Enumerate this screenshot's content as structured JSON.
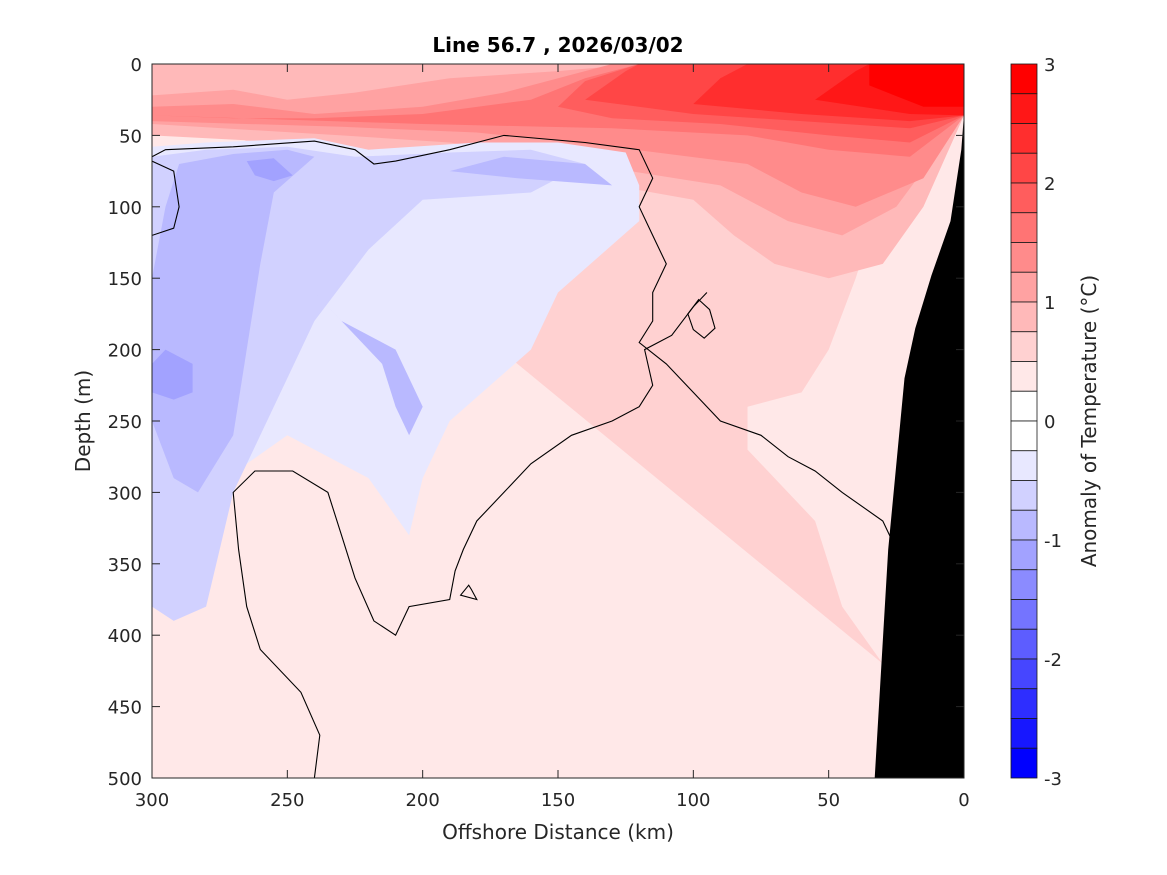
{
  "chart_data": {
    "type": "contour",
    "title": "Line 56.7 , 2026/03/02",
    "xlabel": "Offshore Distance (km)",
    "ylabel": "Depth (m)",
    "xlim": [
      300,
      0
    ],
    "ylim": [
      0,
      500
    ],
    "x_reversed": true,
    "y_reversed": true,
    "xticks": [
      300,
      250,
      200,
      150,
      100,
      50,
      0
    ],
    "yticks": [
      0,
      50,
      100,
      150,
      200,
      250,
      300,
      350,
      400,
      450,
      500
    ],
    "colorbar": {
      "label": "Anomaly of Temperature (°C)",
      "range": [
        -3,
        3
      ],
      "step": 0.25,
      "ticks": [
        3,
        2,
        1,
        0,
        -1,
        -2,
        -3
      ],
      "neg_color": "#0000ff",
      "zero_color": "#ffffff",
      "pos_color": "#ff0000"
    },
    "seafloor_color": "#000000",
    "contour_line_level": 0,
    "regions": [
      {
        "level": 0.25,
        "pts": [
          [
            300,
            0
          ],
          [
            0,
            0
          ],
          [
            0,
            500
          ],
          [
            300,
            500
          ]
        ]
      },
      {
        "level": 0.5,
        "pts": [
          [
            300,
            0
          ],
          [
            0,
            0
          ],
          [
            0,
            36
          ],
          [
            30,
            90
          ],
          [
            40,
            150
          ],
          [
            50,
            200
          ],
          [
            60,
            230
          ],
          [
            80,
            240
          ],
          [
            80,
            270
          ],
          [
            55,
            320
          ],
          [
            45,
            380
          ],
          [
            30,
            420
          ],
          [
            30,
            420
          ]
        ]
      },
      {
        "level": 0.75,
        "pts": [
          [
            300,
            0
          ],
          [
            0,
            0
          ],
          [
            0,
            36
          ],
          [
            15,
            100
          ],
          [
            30,
            140
          ],
          [
            50,
            150
          ],
          [
            70,
            140
          ],
          [
            85,
            120
          ],
          [
            100,
            95
          ],
          [
            130,
            85
          ],
          [
            200,
            70
          ],
          [
            250,
            55
          ],
          [
            300,
            50
          ]
        ]
      },
      {
        "level": 1.0,
        "pts": [
          [
            300,
            22
          ],
          [
            270,
            18
          ],
          [
            250,
            25
          ],
          [
            225,
            20
          ],
          [
            190,
            10
          ],
          [
            150,
            5
          ],
          [
            120,
            0
          ],
          [
            0,
            0
          ],
          [
            0,
            36
          ],
          [
            25,
            100
          ],
          [
            45,
            120
          ],
          [
            65,
            110
          ],
          [
            90,
            85
          ],
          [
            140,
            70
          ],
          [
            190,
            55
          ],
          [
            230,
            50
          ],
          [
            300,
            42
          ]
        ]
      },
      {
        "level": 1.25,
        "pts": [
          [
            300,
            30
          ],
          [
            270,
            28
          ],
          [
            240,
            35
          ],
          [
            200,
            30
          ],
          [
            170,
            20
          ],
          [
            140,
            5
          ],
          [
            130,
            0
          ],
          [
            0,
            0
          ],
          [
            0,
            36
          ],
          [
            15,
            80
          ],
          [
            40,
            100
          ],
          [
            60,
            90
          ],
          [
            80,
            70
          ],
          [
            130,
            58
          ],
          [
            180,
            48
          ],
          [
            230,
            44
          ],
          [
            300,
            40
          ]
        ]
      },
      {
        "level": 1.5,
        "pts": [
          [
            300,
            36
          ],
          [
            270,
            38
          ],
          [
            240,
            38
          ],
          [
            200,
            35
          ],
          [
            160,
            25
          ],
          [
            140,
            10
          ],
          [
            120,
            0
          ],
          [
            0,
            0
          ],
          [
            0,
            36
          ],
          [
            20,
            65
          ],
          [
            50,
            60
          ],
          [
            80,
            50
          ],
          [
            130,
            45
          ],
          [
            200,
            42
          ]
        ]
      },
      {
        "level": 1.75,
        "pts": [
          [
            150,
            30
          ],
          [
            140,
            12
          ],
          [
            120,
            0
          ],
          [
            0,
            0
          ],
          [
            0,
            36
          ],
          [
            20,
            55
          ],
          [
            50,
            50
          ],
          [
            90,
            42
          ],
          [
            130,
            38
          ]
        ]
      },
      {
        "level": 2.0,
        "pts": [
          [
            140,
            25
          ],
          [
            125,
            5
          ],
          [
            120,
            0
          ],
          [
            0,
            0
          ],
          [
            0,
            36
          ],
          [
            20,
            45
          ],
          [
            60,
            40
          ],
          [
            100,
            35
          ]
        ]
      },
      {
        "level": 2.25,
        "pts": [
          [
            100,
            28
          ],
          [
            90,
            10
          ],
          [
            80,
            0
          ],
          [
            0,
            0
          ],
          [
            0,
            36
          ],
          [
            20,
            40
          ],
          [
            60,
            35
          ]
        ]
      },
      {
        "level": 2.5,
        "pts": [
          [
            55,
            25
          ],
          [
            40,
            5
          ],
          [
            35,
            0
          ],
          [
            0,
            0
          ],
          [
            0,
            36
          ],
          [
            20,
            35
          ]
        ]
      },
      {
        "level": 2.75,
        "pts": [
          [
            35,
            15
          ],
          [
            35,
            0
          ],
          [
            0,
            0
          ],
          [
            0,
            30
          ],
          [
            15,
            30
          ]
        ]
      },
      {
        "level": -0.25,
        "pts": [
          [
            300,
            58
          ],
          [
            280,
            55
          ],
          [
            240,
            52
          ],
          [
            220,
            60
          ],
          [
            180,
            55
          ],
          [
            150,
            55
          ],
          [
            125,
            62
          ],
          [
            120,
            85
          ],
          [
            120,
            110
          ],
          [
            150,
            160
          ],
          [
            160,
            200
          ],
          [
            190,
            250
          ],
          [
            200,
            290
          ],
          [
            205,
            330
          ],
          [
            220,
            290
          ],
          [
            250,
            260
          ],
          [
            280,
            300
          ],
          [
            290,
            330
          ],
          [
            300,
            360
          ]
        ]
      },
      {
        "level": -0.5,
        "pts": [
          [
            300,
            65
          ],
          [
            280,
            60
          ],
          [
            250,
            58
          ],
          [
            225,
            65
          ],
          [
            190,
            62
          ],
          [
            160,
            60
          ],
          [
            140,
            70
          ],
          [
            160,
            90
          ],
          [
            200,
            95
          ],
          [
            220,
            130
          ],
          [
            240,
            180
          ],
          [
            260,
            260
          ],
          [
            270,
            300
          ],
          [
            275,
            340
          ],
          [
            280,
            380
          ],
          [
            292,
            390
          ],
          [
            300,
            380
          ]
        ]
      },
      {
        "level": -0.75,
        "pts": [
          [
            290,
            70
          ],
          [
            270,
            63
          ],
          [
            250,
            60
          ],
          [
            240,
            65
          ],
          [
            255,
            90
          ],
          [
            260,
            140
          ],
          [
            265,
            200
          ],
          [
            270,
            260
          ],
          [
            283,
            300
          ],
          [
            292,
            290
          ],
          [
            300,
            250
          ],
          [
            300,
            150
          ],
          [
            295,
            100
          ]
        ]
      },
      {
        "level": -0.75,
        "pts": [
          [
            240,
            160
          ],
          [
            230,
            180
          ],
          [
            210,
            200
          ],
          [
            200,
            240
          ],
          [
            205,
            260
          ],
          [
            210,
            240
          ],
          [
            215,
            210
          ],
          [
            225,
            190
          ]
        ]
      },
      {
        "level": -0.75,
        "pts": [
          [
            190,
            75
          ],
          [
            165,
            80
          ],
          [
            130,
            85
          ],
          [
            140,
            70
          ],
          [
            170,
            65
          ]
        ]
      },
      {
        "level": -1.0,
        "pts": [
          [
            300,
            210
          ],
          [
            295,
            200
          ],
          [
            285,
            210
          ],
          [
            285,
            230
          ],
          [
            292,
            235
          ],
          [
            300,
            230
          ]
        ]
      },
      {
        "level": -1.0,
        "pts": [
          [
            265,
            68
          ],
          [
            255,
            66
          ],
          [
            248,
            78
          ],
          [
            255,
            82
          ],
          [
            262,
            78
          ]
        ]
      }
    ],
    "zero_contours": [
      [
        [
          300,
          65
        ],
        [
          295,
          60
        ],
        [
          270,
          58
        ],
        [
          240,
          54
        ],
        [
          225,
          60
        ],
        [
          218,
          70
        ],
        [
          210,
          68
        ],
        [
          190,
          60
        ],
        [
          170,
          50
        ],
        [
          140,
          55
        ],
        [
          120,
          60
        ],
        [
          115,
          80
        ],
        [
          120,
          100
        ],
        [
          115,
          120
        ],
        [
          110,
          140
        ],
        [
          115,
          160
        ],
        [
          115,
          180
        ],
        [
          120,
          195
        ],
        [
          110,
          210
        ],
        [
          100,
          230
        ],
        [
          90,
          250
        ],
        [
          75,
          260
        ],
        [
          65,
          275
        ],
        [
          55,
          285
        ],
        [
          45,
          300
        ],
        [
          30,
          320
        ],
        [
          25,
          340
        ],
        [
          20,
          360
        ],
        [
          10,
          380
        ],
        [
          0,
          400
        ]
      ],
      [
        [
          300,
          68
        ],
        [
          292,
          75
        ],
        [
          290,
          100
        ],
        [
          292,
          115
        ],
        [
          300,
          120
        ]
      ],
      [
        [
          240,
          500
        ],
        [
          238,
          470
        ],
        [
          245,
          440
        ],
        [
          260,
          410
        ],
        [
          265,
          380
        ],
        [
          268,
          340
        ],
        [
          270,
          300
        ],
        [
          262,
          285
        ],
        [
          248,
          285
        ],
        [
          235,
          300
        ],
        [
          230,
          330
        ],
        [
          225,
          360
        ],
        [
          218,
          390
        ],
        [
          210,
          400
        ],
        [
          205,
          380
        ],
        [
          190,
          375
        ],
        [
          188,
          355
        ],
        [
          185,
          340
        ],
        [
          180,
          320
        ],
        [
          170,
          300
        ],
        [
          160,
          280
        ],
        [
          145,
          260
        ],
        [
          130,
          250
        ],
        [
          120,
          240
        ],
        [
          115,
          225
        ],
        [
          118,
          200
        ],
        [
          108,
          190
        ],
        [
          100,
          170
        ],
        [
          95,
          160
        ]
      ]
    ],
    "small_contours": [
      [
        [
          98,
          165
        ],
        [
          94,
          172
        ],
        [
          92,
          185
        ],
        [
          96,
          192
        ],
        [
          100,
          186
        ],
        [
          102,
          175
        ]
      ],
      [
        [
          183,
          365
        ],
        [
          186,
          372
        ],
        [
          180,
          375
        ],
        [
          182,
          368
        ]
      ]
    ],
    "seafloor": [
      [
        33,
        500
      ],
      [
        28,
        340
      ],
      [
        22,
        220
      ],
      [
        18,
        185
      ],
      [
        12,
        148
      ],
      [
        5,
        110
      ],
      [
        1,
        60
      ],
      [
        0,
        35
      ],
      [
        0,
        500
      ]
    ]
  }
}
